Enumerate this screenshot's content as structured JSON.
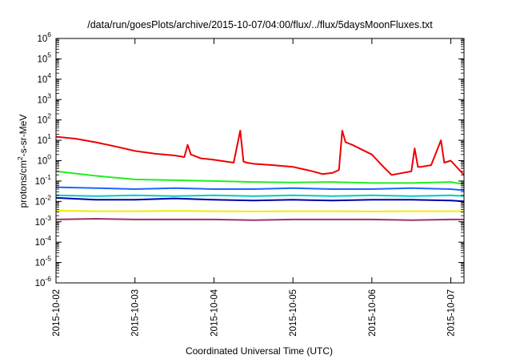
{
  "chart_data": {
    "type": "line",
    "title": "/data/run/goesPlots/archive/2015-10-07/04:00/flux/../flux/5daysMoonFluxes.txt",
    "xlabel": "Coordinated Universal Time (UTC)",
    "ylabel": "protons/cm2-s-sr-MeV",
    "ylabel_parts": [
      "protons/cm",
      "2",
      "-s-sr-MeV"
    ],
    "yscale": "log",
    "ylim": [
      1e-06,
      1000000.0
    ],
    "y_ticks": [
      {
        "base": "10",
        "exp": "-6",
        "value": 1e-06
      },
      {
        "base": "10",
        "exp": "-5",
        "value": 1e-05
      },
      {
        "base": "10",
        "exp": "-4",
        "value": 0.0001
      },
      {
        "base": "10",
        "exp": "-3",
        "value": 0.001
      },
      {
        "base": "10",
        "exp": "-2",
        "value": 0.01
      },
      {
        "base": "10",
        "exp": "-1",
        "value": 0.1
      },
      {
        "base": "10",
        "exp": "0",
        "value": 1
      },
      {
        "base": "10",
        "exp": "1",
        "value": 10
      },
      {
        "base": "10",
        "exp": "2",
        "value": 100
      },
      {
        "base": "10",
        "exp": "3",
        "value": 1000
      },
      {
        "base": "10",
        "exp": "4",
        "value": 10000
      },
      {
        "base": "10",
        "exp": "5",
        "value": 100000
      },
      {
        "base": "10",
        "exp": "6",
        "value": 1000000
      }
    ],
    "xlim": [
      "2015-10-02",
      "2015-10-07T04:00"
    ],
    "x_ticks": [
      "2015-10-02",
      "2015-10-03",
      "2015-10-04",
      "2015-10-05",
      "2015-10-06",
      "2015-10-07"
    ],
    "grid": false,
    "legend": "none",
    "series": [
      {
        "color": "#ee0000",
        "x": [
          "2015-10-02T00:00",
          "2015-10-02T06:00",
          "2015-10-02T12:00",
          "2015-10-02T18:00",
          "2015-10-03T00:00",
          "2015-10-03T06:00",
          "2015-10-03T12:00",
          "2015-10-03T15:00",
          "2015-10-03T16:00",
          "2015-10-03T17:00",
          "2015-10-03T20:00",
          "2015-10-04T00:00",
          "2015-10-04T06:00",
          "2015-10-04T08:00",
          "2015-10-04T09:00",
          "2015-10-04T10:00",
          "2015-10-04T12:00",
          "2015-10-04T18:00",
          "2015-10-05T00:00",
          "2015-10-05T06:00",
          "2015-10-05T09:00",
          "2015-10-05T12:00",
          "2015-10-05T14:00",
          "2015-10-05T15:00",
          "2015-10-05T16:00",
          "2015-10-05T18:00",
          "2015-10-06T00:00",
          "2015-10-06T03:00",
          "2015-10-06T06:00",
          "2015-10-06T12:00",
          "2015-10-06T13:00",
          "2015-10-06T14:00",
          "2015-10-06T15:00",
          "2015-10-06T18:00",
          "2015-10-06T21:00",
          "2015-10-06T22:00",
          "2015-10-07T00:00",
          "2015-10-07T04:00"
        ],
        "y": [
          15,
          12,
          8,
          5,
          3,
          2.2,
          1.8,
          1.5,
          6,
          2,
          1.3,
          1.1,
          0.8,
          30,
          0.9,
          0.8,
          0.7,
          0.6,
          0.5,
          0.3,
          0.22,
          0.25,
          0.35,
          30,
          8,
          6,
          2,
          0.6,
          0.2,
          0.3,
          4,
          0.5,
          0.5,
          0.6,
          10,
          0.8,
          1,
          0.2
        ]
      },
      {
        "color": "#22ee22",
        "x": [
          "2015-10-02T00:00",
          "2015-10-02T12:00",
          "2015-10-03T00:00",
          "2015-10-03T12:00",
          "2015-10-04T00:00",
          "2015-10-04T12:00",
          "2015-10-05T00:00",
          "2015-10-05T12:00",
          "2015-10-06T00:00",
          "2015-10-06T12:00",
          "2015-10-07T00:00",
          "2015-10-07T04:00"
        ],
        "y": [
          0.3,
          0.18,
          0.12,
          0.11,
          0.1,
          0.09,
          0.085,
          0.09,
          0.08,
          0.08,
          0.09,
          0.07
        ]
      },
      {
        "color": "#1a66ff",
        "x": [
          "2015-10-02T00:00",
          "2015-10-02T12:00",
          "2015-10-03T00:00",
          "2015-10-03T12:00",
          "2015-10-04T00:00",
          "2015-10-04T12:00",
          "2015-10-05T00:00",
          "2015-10-05T12:00",
          "2015-10-06T00:00",
          "2015-10-06T12:00",
          "2015-10-07T00:00",
          "2015-10-07T04:00"
        ],
        "y": [
          0.05,
          0.045,
          0.04,
          0.045,
          0.04,
          0.04,
          0.045,
          0.04,
          0.04,
          0.045,
          0.04,
          0.035
        ]
      },
      {
        "color": "#00cccc",
        "x": [
          "2015-10-02T00:00",
          "2015-10-02T12:00",
          "2015-10-03T00:00",
          "2015-10-03T12:00",
          "2015-10-04T00:00",
          "2015-10-04T12:00",
          "2015-10-05T00:00",
          "2015-10-05T12:00",
          "2015-10-06T00:00",
          "2015-10-06T12:00",
          "2015-10-07T00:00",
          "2015-10-07T04:00"
        ],
        "y": [
          0.02,
          0.018,
          0.02,
          0.018,
          0.02,
          0.018,
          0.02,
          0.018,
          0.02,
          0.018,
          0.02,
          0.018
        ]
      },
      {
        "color": "#0000aa",
        "x": [
          "2015-10-02T00:00",
          "2015-10-02T12:00",
          "2015-10-03T00:00",
          "2015-10-03T12:00",
          "2015-10-04T00:00",
          "2015-10-04T12:00",
          "2015-10-05T00:00",
          "2015-10-05T12:00",
          "2015-10-06T00:00",
          "2015-10-06T12:00",
          "2015-10-07T00:00",
          "2015-10-07T04:00"
        ],
        "y": [
          0.015,
          0.012,
          0.012,
          0.014,
          0.012,
          0.011,
          0.012,
          0.011,
          0.012,
          0.012,
          0.011,
          0.01
        ]
      },
      {
        "color": "#eeee00",
        "x": [
          "2015-10-02T00:00",
          "2015-10-02T12:00",
          "2015-10-03T00:00",
          "2015-10-03T12:00",
          "2015-10-04T00:00",
          "2015-10-04T12:00",
          "2015-10-05T00:00",
          "2015-10-05T12:00",
          "2015-10-06T00:00",
          "2015-10-06T12:00",
          "2015-10-07T00:00",
          "2015-10-07T04:00"
        ],
        "y": [
          0.0035,
          0.0033,
          0.0033,
          0.0034,
          0.0033,
          0.0032,
          0.0033,
          0.0033,
          0.0032,
          0.0033,
          0.0033,
          0.0033
        ]
      },
      {
        "color": "#993366",
        "x": [
          "2015-10-02T00:00",
          "2015-10-02T12:00",
          "2015-10-03T00:00",
          "2015-10-03T12:00",
          "2015-10-04T00:00",
          "2015-10-04T12:00",
          "2015-10-05T00:00",
          "2015-10-05T12:00",
          "2015-10-06T00:00",
          "2015-10-06T12:00",
          "2015-10-07T00:00",
          "2015-10-07T04:00"
        ],
        "y": [
          0.0013,
          0.0014,
          0.0013,
          0.0013,
          0.0013,
          0.0012,
          0.0013,
          0.0013,
          0.0013,
          0.0012,
          0.0013,
          0.0013
        ]
      }
    ]
  }
}
